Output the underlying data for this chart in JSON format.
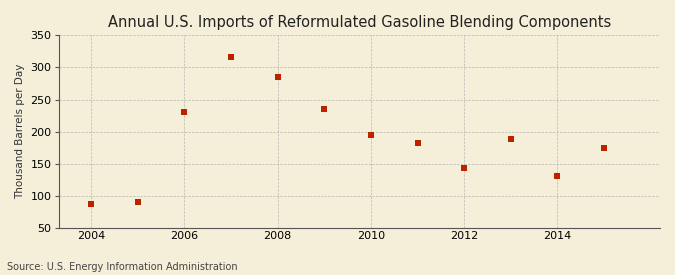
{
  "title": "Annual U.S. Imports of Reformulated Gasoline Blending Components",
  "ylabel": "Thousand Barrels per Day",
  "source": "Source: U.S. Energy Information Administration",
  "years": [
    2004,
    2005,
    2006,
    2007,
    2008,
    2009,
    2010,
    2011,
    2012,
    2013,
    2014,
    2015
  ],
  "values": [
    88,
    90,
    230,
    317,
    285,
    235,
    195,
    183,
    143,
    188,
    131,
    175
  ],
  "ylim": [
    50,
    350
  ],
  "yticks": [
    50,
    100,
    150,
    200,
    250,
    300,
    350
  ],
  "xticks": [
    2004,
    2006,
    2008,
    2010,
    2012,
    2014
  ],
  "xlim": [
    2003.3,
    2016.2
  ],
  "marker_color": "#bb2200",
  "marker": "s",
  "marker_size": 4,
  "background_color": "#f5eed8",
  "grid_color": "#aaaaaa",
  "spine_color": "#555555",
  "title_fontsize": 10.5,
  "label_fontsize": 7.5,
  "tick_fontsize": 8,
  "source_fontsize": 7
}
